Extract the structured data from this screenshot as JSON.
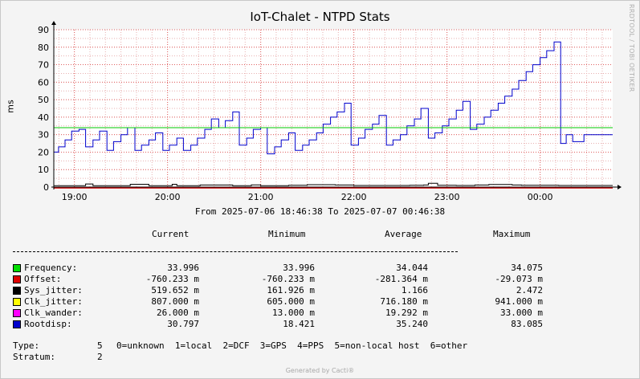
{
  "chart_data": {
    "type": "line",
    "title": "IoT-Chalet - NTPD Stats",
    "ylabel": "ms",
    "ylim": [
      0,
      90
    ],
    "yticks": [
      0,
      10,
      20,
      30,
      40,
      50,
      60,
      70,
      80,
      90
    ],
    "xlim_hours": [
      18.779,
      24.779
    ],
    "xticks": [
      {
        "label": "19:00",
        "h": 19
      },
      {
        "label": "20:00",
        "h": 20
      },
      {
        "label": "21:00",
        "h": 21
      },
      {
        "label": "22:00",
        "h": 22
      },
      {
        "label": "23:00",
        "h": 23
      },
      {
        "label": "00:00",
        "h": 24
      }
    ],
    "range_text": "From 2025-07-06 18:46:38 To 2025-07-07 00:46:38",
    "grid": true,
    "series": [
      {
        "name": "Rootdisp",
        "color": "#0000cc",
        "x": [
          18.78,
          18.83,
          18.9,
          18.97,
          19.05,
          19.12,
          19.2,
          19.27,
          19.35,
          19.42,
          19.5,
          19.57,
          19.65,
          19.72,
          19.8,
          19.87,
          19.95,
          20.02,
          20.1,
          20.17,
          20.25,
          20.32,
          20.4,
          20.47,
          20.55,
          20.62,
          20.7,
          20.77,
          20.85,
          20.92,
          21.0,
          21.07,
          21.15,
          21.22,
          21.3,
          21.37,
          21.45,
          21.52,
          21.6,
          21.67,
          21.75,
          21.82,
          21.9,
          21.97,
          22.05,
          22.12,
          22.2,
          22.27,
          22.35,
          22.42,
          22.5,
          22.57,
          22.65,
          22.72,
          22.8,
          22.87,
          22.95,
          23.02,
          23.1,
          23.17,
          23.25,
          23.32,
          23.4,
          23.47,
          23.55,
          23.62,
          23.7,
          23.77,
          23.85,
          23.92,
          24.0,
          24.07,
          24.15,
          24.22,
          24.28,
          24.35,
          24.4,
          24.47,
          24.55,
          24.62,
          24.7,
          24.77
        ],
        "y": [
          20,
          23,
          27,
          32,
          33,
          23,
          27,
          32,
          21,
          26,
          30,
          34,
          21,
          24,
          27,
          31,
          21,
          24,
          28,
          21,
          24,
          28,
          33,
          39,
          34,
          38,
          43,
          24,
          28,
          33,
          34,
          19,
          23,
          27,
          31,
          21,
          24,
          27,
          31,
          36,
          40,
          43,
          48,
          24,
          28,
          33,
          36,
          41,
          24,
          27,
          30,
          35,
          39,
          45,
          28,
          31,
          35,
          39,
          44,
          49,
          33,
          36,
          40,
          44,
          48,
          52,
          56,
          61,
          66,
          70,
          74,
          78,
          83,
          25,
          30,
          26,
          26,
          30,
          30,
          30,
          30,
          30
        ]
      },
      {
        "name": "Frequency",
        "color": "#00c800",
        "x": [
          18.78,
          24.77
        ],
        "y": [
          34.0,
          34.0
        ]
      },
      {
        "name": "Sys_jitter",
        "color": "#000000",
        "x": [
          18.78,
          19.05,
          19.12,
          19.2,
          19.3,
          19.6,
          19.7,
          19.8,
          20.0,
          20.05,
          20.1,
          20.3,
          20.35,
          20.45,
          20.6,
          20.7,
          20.85,
          20.9,
          21.0,
          21.2,
          21.3,
          21.5,
          21.8,
          22.0,
          22.2,
          22.4,
          22.6,
          22.75,
          22.8,
          22.9,
          23.1,
          23.3,
          23.45,
          23.7,
          23.8,
          24.0,
          24.2,
          24.4,
          24.6,
          24.77
        ],
        "y": [
          0.8,
          0.8,
          1.8,
          0.8,
          0.8,
          1.6,
          1.6,
          0.8,
          0.8,
          1.6,
          0.8,
          0.8,
          1.2,
          1.2,
          1.2,
          0.8,
          0.8,
          1.3,
          0.8,
          0.8,
          1.0,
          1.4,
          1.2,
          0.9,
          0.9,
          0.9,
          1.0,
          1.2,
          2.2,
          1.0,
          0.9,
          1.2,
          1.5,
          1.2,
          1.0,
          1.0,
          0.9,
          0.9,
          0.9,
          0.9
        ]
      },
      {
        "name": "Offset",
        "color": "#cc0000",
        "x": [
          18.78,
          19.3,
          19.6,
          19.7,
          24.77
        ],
        "y": [
          -0.3,
          -0.3,
          -0.3,
          -0.3,
          -0.3
        ]
      }
    ]
  },
  "range_label": "From 2025-07-06 18:46:38 To 2025-07-07 00:46:38",
  "legend": {
    "headers": {
      "current": "Current",
      "minimum": "Minimum",
      "average": "Average",
      "maximum": "Maximum"
    },
    "rows": [
      {
        "name": "Frequency:",
        "color": "#00dd00",
        "current": "33.996",
        "minimum": "33.996",
        "average": "34.044",
        "maximum": "34.075"
      },
      {
        "name": "Offset:",
        "color": "#dd0000",
        "current": "-760.233 m",
        "minimum": "-760.233 m",
        "average": "-281.364 m",
        "maximum": "-29.073 m"
      },
      {
        "name": "Sys_jitter:",
        "color": "#000000",
        "current": "519.652 m",
        "minimum": "161.926 m",
        "average": "1.166",
        "maximum": "2.472"
      },
      {
        "name": "Clk_jitter:",
        "color": "#ffff00",
        "current": "807.000 m",
        "minimum": "605.000 m",
        "average": "716.180 m",
        "maximum": "941.000 m"
      },
      {
        "name": "Clk_wander:",
        "color": "#ff00ff",
        "current": "26.000 m",
        "minimum": "13.000 m",
        "average": "19.292 m",
        "maximum": "33.000 m"
      },
      {
        "name": "Rootdisp:",
        "color": "#0000cc",
        "current": "30.797",
        "minimum": "18.421",
        "average": "35.240",
        "maximum": "83.085"
      }
    ]
  },
  "info": {
    "type_label": "Type:",
    "type_value": "5",
    "type_legend": "0=unknown  1=local  2=DCF  3=GPS  4=PPS  5=non-local host  6=other",
    "stratum_label": "Stratum:",
    "stratum_value": "2"
  },
  "watermark": "RRDTOOL / TOBI OETIKER",
  "footer": "Generated by Cacti®"
}
